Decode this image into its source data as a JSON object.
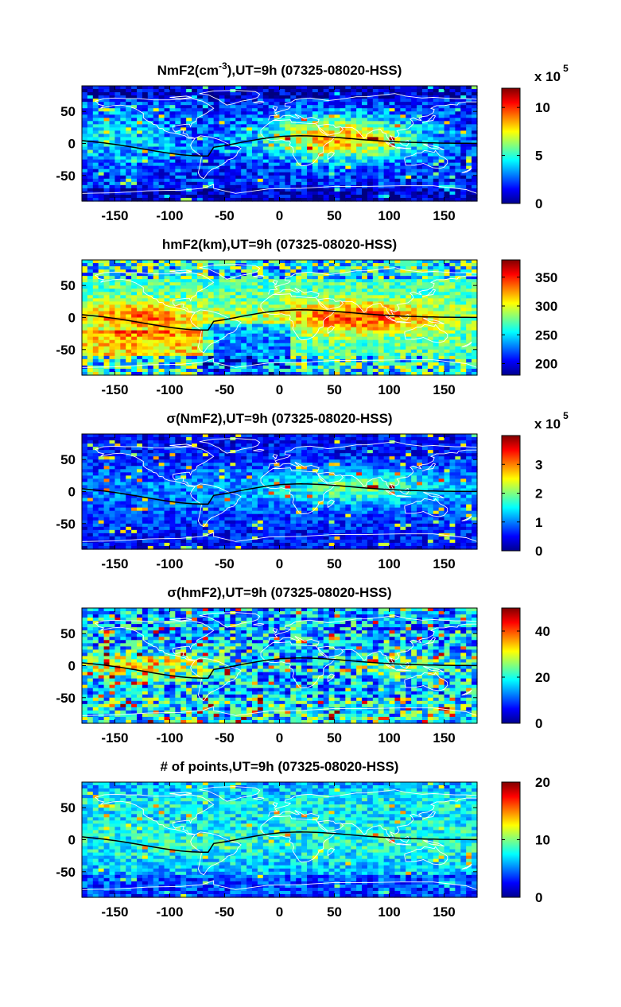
{
  "figure": {
    "background": "#ffffff",
    "colormap": "jet",
    "map_overlay_color": "#ffffff",
    "terminator_line_color": "#000000"
  },
  "chart_data": [
    {
      "type": "heatmap",
      "title_main": "NmF2(cm",
      "title_sup": "-3",
      "title_rest": "),UT=9h (07325-08020-HSS)",
      "xlim": [
        -180,
        180
      ],
      "ylim": [
        -90,
        90
      ],
      "xticks": [
        -150,
        -100,
        -50,
        0,
        50,
        100,
        150
      ],
      "yticks": [
        50,
        0,
        -50
      ],
      "colorbar": {
        "min": 0,
        "max": 12,
        "ticks": [
          0,
          5,
          10
        ],
        "multiplier_base": "x 10",
        "multiplier_exp": "5"
      },
      "pattern": "nmf2",
      "terminator": true
    },
    {
      "type": "heatmap",
      "title_main": "hmF2(km),UT=9h (07325-08020-HSS)",
      "title_sup": "",
      "title_rest": "",
      "xlim": [
        -180,
        180
      ],
      "ylim": [
        -90,
        90
      ],
      "xticks": [
        -150,
        -100,
        -50,
        0,
        50,
        100,
        150
      ],
      "yticks": [
        50,
        0,
        -50
      ],
      "colorbar": {
        "min": 180,
        "max": 380,
        "ticks": [
          200,
          250,
          300,
          350
        ],
        "multiplier_base": "",
        "multiplier_exp": ""
      },
      "pattern": "hmf2",
      "terminator": true
    },
    {
      "type": "heatmap",
      "title_main": "σ(NmF2),UT=9h (07325-08020-HSS)",
      "title_sup": "",
      "title_rest": "",
      "xlim": [
        -180,
        180
      ],
      "ylim": [
        -90,
        90
      ],
      "xticks": [
        -150,
        -100,
        -50,
        0,
        50,
        100,
        150
      ],
      "yticks": [
        50,
        0,
        -50
      ],
      "colorbar": {
        "min": 0,
        "max": 4,
        "ticks": [
          0,
          1,
          2,
          3
        ],
        "multiplier_base": "x 10",
        "multiplier_exp": "5"
      },
      "pattern": "snmf2",
      "terminator": true
    },
    {
      "type": "heatmap",
      "title_main": "σ(hmF2),UT=9h (07325-08020-HSS)",
      "title_sup": "",
      "title_rest": "",
      "xlim": [
        -180,
        180
      ],
      "ylim": [
        -90,
        90
      ],
      "xticks": [
        -150,
        -100,
        -50,
        0,
        50,
        100,
        150
      ],
      "yticks": [
        50,
        0,
        -50
      ],
      "colorbar": {
        "min": 0,
        "max": 50,
        "ticks": [
          0,
          20,
          40
        ],
        "multiplier_base": "",
        "multiplier_exp": ""
      },
      "pattern": "shmf2",
      "terminator": true
    },
    {
      "type": "heatmap",
      "title_main": "# of points,UT=9h (07325-08020-HSS)",
      "title_sup": "",
      "title_rest": "",
      "xlim": [
        -180,
        180
      ],
      "ylim": [
        -90,
        90
      ],
      "xticks": [
        -150,
        -100,
        -50,
        0,
        50,
        100,
        150
      ],
      "yticks": [
        50,
        0,
        -50
      ],
      "colorbar": {
        "min": 0,
        "max": 20,
        "ticks": [
          0,
          10,
          20
        ],
        "multiplier_base": "",
        "multiplier_exp": ""
      },
      "pattern": "npts",
      "terminator": true
    }
  ]
}
